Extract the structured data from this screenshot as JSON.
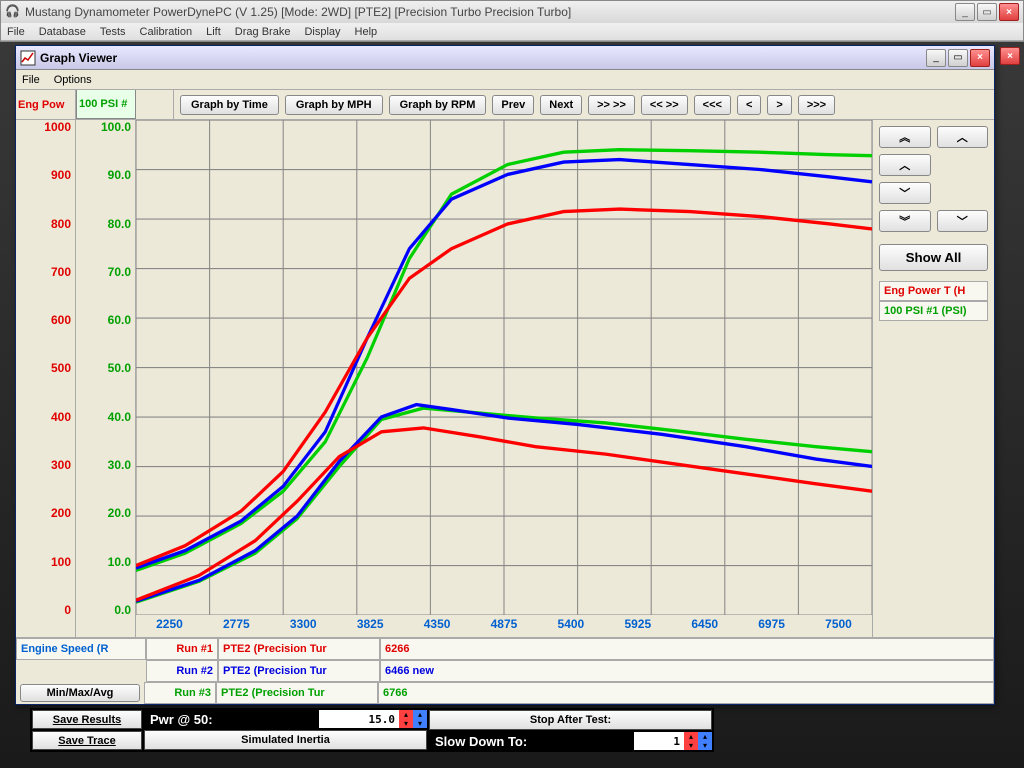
{
  "main_window": {
    "title": "Mustang Dynamometer PowerDynePC (V 1.25) [Mode:  2WD] [PTE2] [Precision Turbo Precision Turbo]",
    "menu": [
      "File",
      "Database",
      "Tests",
      "Calibration",
      "Lift",
      "Drag Brake",
      "Display",
      "Help"
    ]
  },
  "graph_window": {
    "title": "Graph Viewer",
    "menu": [
      "File",
      "Options"
    ],
    "axis_tab_left": "Eng Pow",
    "axis_tab_right": "100 PSI #",
    "toolbar": {
      "graph_time": "Graph by Time",
      "graph_mph": "Graph by MPH",
      "graph_rpm": "Graph by RPM",
      "prev": "Prev",
      "next": "Next",
      "ff": ">> >>",
      "rr": "<< >>",
      "rrr": "<<<",
      "l": "<",
      "r": ">",
      "fff": ">>>"
    }
  },
  "chart": {
    "type": "line",
    "x_ticks": [
      "2250",
      "2775",
      "3300",
      "3825",
      "4350",
      "4875",
      "5400",
      "5925",
      "6450",
      "6975",
      "7500"
    ],
    "xlim": [
      2250,
      7500
    ],
    "y1_ticks": [
      "1000",
      "900",
      "800",
      "700",
      "600",
      "500",
      "400",
      "300",
      "200",
      "100",
      "0"
    ],
    "y2_ticks": [
      "100.0",
      "90.0",
      "80.0",
      "70.0",
      "60.0",
      "50.0",
      "40.0",
      "30.0",
      "20.0",
      "10.0",
      "0.0"
    ],
    "ylim": [
      0,
      1000
    ],
    "colors": {
      "run1": "#ff0000",
      "run2": "#0000ff",
      "run3": "#00d000"
    },
    "bg": "#ece9d8",
    "grid_color": "#888888",
    "line_width": 3,
    "series": {
      "run1_upper": [
        [
          2250,
          100
        ],
        [
          2600,
          140
        ],
        [
          3000,
          210
        ],
        [
          3300,
          290
        ],
        [
          3600,
          410
        ],
        [
          3900,
          560
        ],
        [
          4200,
          680
        ],
        [
          4500,
          740
        ],
        [
          4900,
          790
        ],
        [
          5300,
          815
        ],
        [
          5700,
          820
        ],
        [
          6200,
          815
        ],
        [
          6700,
          805
        ],
        [
          7200,
          790
        ],
        [
          7500,
          780
        ]
      ],
      "run1_lower": [
        [
          2250,
          30
        ],
        [
          2700,
          80
        ],
        [
          3100,
          150
        ],
        [
          3400,
          230
        ],
        [
          3700,
          320
        ],
        [
          4000,
          370
        ],
        [
          4300,
          378
        ],
        [
          4700,
          360
        ],
        [
          5100,
          340
        ],
        [
          5600,
          325
        ],
        [
          6100,
          305
        ],
        [
          6600,
          285
        ],
        [
          7100,
          265
        ],
        [
          7500,
          250
        ]
      ],
      "run2_upper": [
        [
          2250,
          95
        ],
        [
          2600,
          130
        ],
        [
          3000,
          190
        ],
        [
          3300,
          260
        ],
        [
          3600,
          370
        ],
        [
          3900,
          560
        ],
        [
          4200,
          740
        ],
        [
          4500,
          840
        ],
        [
          4900,
          890
        ],
        [
          5300,
          915
        ],
        [
          5700,
          920
        ],
        [
          6200,
          910
        ],
        [
          6700,
          900
        ],
        [
          7200,
          885
        ],
        [
          7500,
          875
        ]
      ],
      "run2_lower": [
        [
          2250,
          28
        ],
        [
          2700,
          70
        ],
        [
          3100,
          130
        ],
        [
          3400,
          200
        ],
        [
          3700,
          310
        ],
        [
          4000,
          400
        ],
        [
          4250,
          425
        ],
        [
          4500,
          415
        ],
        [
          4900,
          398
        ],
        [
          5400,
          385
        ],
        [
          6000,
          365
        ],
        [
          6600,
          340
        ],
        [
          7100,
          315
        ],
        [
          7500,
          300
        ]
      ],
      "run3_upper": [
        [
          2250,
          90
        ],
        [
          2600,
          125
        ],
        [
          3000,
          185
        ],
        [
          3300,
          250
        ],
        [
          3600,
          350
        ],
        [
          3900,
          520
        ],
        [
          4200,
          720
        ],
        [
          4500,
          850
        ],
        [
          4900,
          910
        ],
        [
          5300,
          935
        ],
        [
          5700,
          940
        ],
        [
          6200,
          938
        ],
        [
          6700,
          935
        ],
        [
          7200,
          930
        ],
        [
          7500,
          928
        ]
      ],
      "run3_lower": [
        [
          2250,
          26
        ],
        [
          2700,
          68
        ],
        [
          3100,
          125
        ],
        [
          3400,
          195
        ],
        [
          3700,
          300
        ],
        [
          4000,
          395
        ],
        [
          4300,
          418
        ],
        [
          4700,
          408
        ],
        [
          5100,
          398
        ],
        [
          5600,
          388
        ],
        [
          6100,
          372
        ],
        [
          6600,
          355
        ],
        [
          7100,
          340
        ],
        [
          7500,
          330
        ]
      ]
    }
  },
  "right_pane": {
    "show_all": "Show All",
    "legend1": "Eng Power T (H",
    "legend2": "100 PSI #1 (PSI)"
  },
  "info_rows": {
    "engine_speed": "Engine Speed (R",
    "run1": "Run #1",
    "run2": "Run #2",
    "run3": "Run #3",
    "run1_name": "PTE2 (Precision Tur",
    "run2_name": "PTE2 (Precision Tur",
    "run3_name": "PTE2 (Precision Tur",
    "run1_val": "6266",
    "run2_val": "6466 new",
    "run3_val": "6766",
    "minmax": "Min/Max/Avg"
  },
  "status_bar": {
    "save_results": "Save Results",
    "save_trace": "Save Trace",
    "pwr_label": "Pwr @ 50:",
    "pwr_value": "15.0",
    "sim_inertia": "Simulated Inertia",
    "stop_after": "Stop After Test:",
    "slow_down": "Slow Down To:",
    "slow_val": "1"
  }
}
